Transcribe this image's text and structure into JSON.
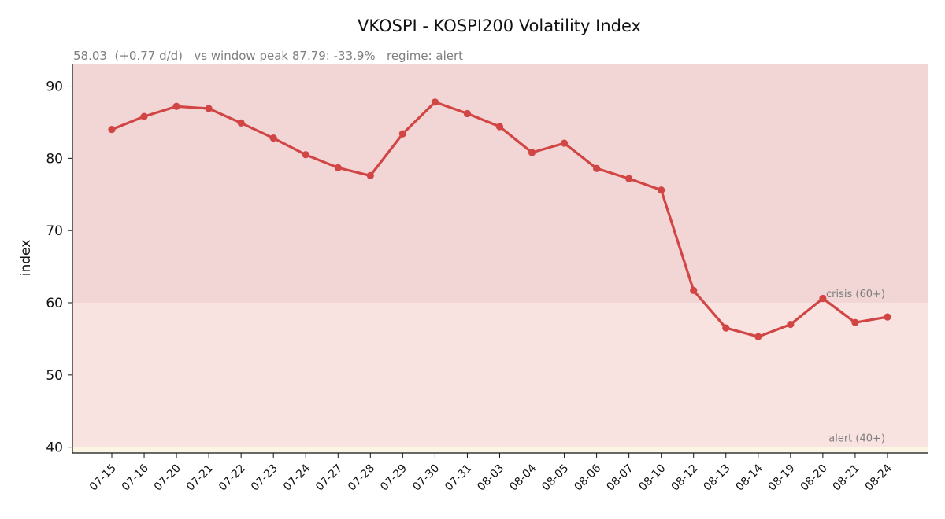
{
  "chart_data": {
    "type": "line",
    "title": "VKOSPI - KOSPI200 Volatility Index",
    "subtitle": "58.03  (+0.77 d/d)   vs window peak 87.79: -33.9%   regime: alert",
    "xlabel": "",
    "ylabel": "index",
    "ylim": [
      39.2,
      93
    ],
    "yticks": [
      40,
      50,
      60,
      70,
      80,
      90
    ],
    "grid": false,
    "categories": [
      "07-15",
      "07-16",
      "07-20",
      "07-21",
      "07-22",
      "07-23",
      "07-24",
      "07-27",
      "07-28",
      "07-29",
      "07-30",
      "07-31",
      "08-03",
      "08-04",
      "08-05",
      "08-06",
      "08-07",
      "08-10",
      "08-12",
      "08-13",
      "08-14",
      "08-19",
      "08-20",
      "08-21",
      "08-24"
    ],
    "series": [
      {
        "values": [
          84.0,
          85.8,
          87.2,
          86.9,
          84.9,
          82.8,
          80.5,
          78.7,
          77.6,
          83.4,
          87.79,
          86.2,
          84.4,
          80.8,
          82.1,
          78.6,
          77.2,
          75.6,
          61.7,
          56.5,
          55.3,
          57.0,
          60.6,
          57.26,
          58.03
        ],
        "color": "#d24545"
      }
    ],
    "bands": [
      {
        "label": "crisis (60+)",
        "from": 60,
        "to": 93,
        "color": "#f2d5d5"
      },
      {
        "label": "alert (40+)",
        "from": 40,
        "to": 60,
        "color": "#f9e3e1"
      },
      {
        "label": "",
        "from": 39.2,
        "to": 40,
        "color": "#fbf5e3"
      }
    ]
  }
}
